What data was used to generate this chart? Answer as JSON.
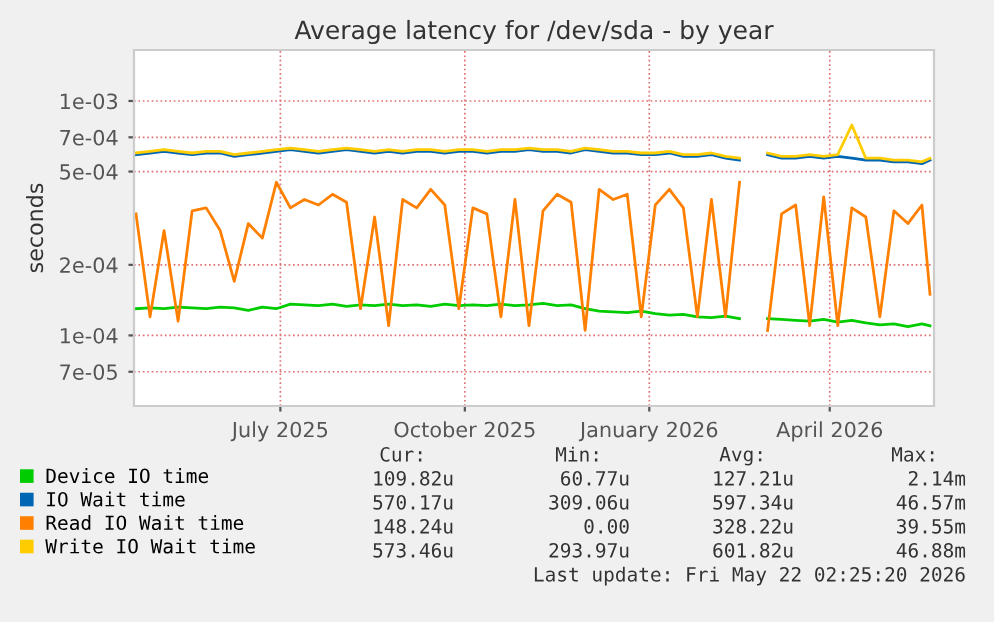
{
  "chart_data": {
    "type": "line",
    "title": "Average latency for /dev/sda - by year",
    "ylabel": "seconds",
    "x": [
      "2025-04-20",
      "2025-04-27",
      "2025-05-04",
      "2025-05-11",
      "2025-05-18",
      "2025-05-25",
      "2025-06-01",
      "2025-06-08",
      "2025-06-15",
      "2025-06-22",
      "2025-06-29",
      "2025-07-06",
      "2025-07-13",
      "2025-07-20",
      "2025-07-27",
      "2025-08-03",
      "2025-08-10",
      "2025-08-17",
      "2025-08-24",
      "2025-08-31",
      "2025-09-07",
      "2025-09-14",
      "2025-09-21",
      "2025-09-28",
      "2025-10-05",
      "2025-10-12",
      "2025-10-19",
      "2025-10-26",
      "2025-11-02",
      "2025-11-09",
      "2025-11-16",
      "2025-11-23",
      "2025-11-30",
      "2025-12-07",
      "2025-12-14",
      "2025-12-21",
      "2025-12-28",
      "2026-01-04",
      "2026-01-11",
      "2026-01-18",
      "2026-01-25",
      "2026-02-01",
      "2026-02-08",
      "2026-02-15",
      "2026-02-22",
      "2026-03-01",
      "2026-03-08",
      "2026-03-15",
      "2026-03-22",
      "2026-03-29",
      "2026-04-05",
      "2026-04-12",
      "2026-04-19",
      "2026-04-26",
      "2026-05-03",
      "2026-05-10",
      "2026-05-17",
      "2026-05-21"
    ],
    "series": [
      {
        "name": "Device IO time",
        "color": "#00cc00",
        "values": [
          0.00013,
          0.000131,
          0.00013,
          0.000132,
          0.000131,
          0.00013,
          0.000132,
          0.000131,
          0.000128,
          0.000132,
          0.00013,
          0.000136,
          0.000135,
          0.000134,
          0.000136,
          0.000133,
          0.000135,
          0.000134,
          0.000136,
          0.000134,
          0.000135,
          0.000133,
          0.000136,
          0.000134,
          0.000135,
          0.000134,
          0.000136,
          0.000134,
          0.000135,
          0.000137,
          0.000134,
          0.000135,
          0.00013,
          0.000127,
          0.000126,
          0.000125,
          0.000127,
          0.000124,
          0.000122,
          0.000123,
          0.00012,
          0.000119,
          0.000121,
          0.000118,
          null,
          0.000118,
          0.000117,
          0.000116,
          0.000115,
          0.000117,
          0.000114,
          0.000116,
          0.000113,
          0.000111,
          0.000112,
          0.000109,
          0.000112,
          0.00011
        ]
      },
      {
        "name": "IO Wait time",
        "color": "#0066b3",
        "values": [
          0.00059,
          0.0006,
          0.00061,
          0.0006,
          0.00059,
          0.0006,
          0.0006,
          0.00058,
          0.00059,
          0.0006,
          0.00061,
          0.00062,
          0.00061,
          0.0006,
          0.00061,
          0.00062,
          0.00061,
          0.0006,
          0.00061,
          0.0006,
          0.00061,
          0.00061,
          0.0006,
          0.00061,
          0.00061,
          0.0006,
          0.00061,
          0.00061,
          0.00062,
          0.00061,
          0.00061,
          0.0006,
          0.00062,
          0.00061,
          0.0006,
          0.0006,
          0.00059,
          0.00059,
          0.0006,
          0.00058,
          0.00058,
          0.00059,
          0.00057,
          0.00056,
          null,
          0.00059,
          0.00057,
          0.00057,
          0.00058,
          0.00057,
          0.00058,
          0.00057,
          0.00056,
          0.00056,
          0.00055,
          0.00055,
          0.00054,
          0.00056
        ]
      },
      {
        "name": "Read IO Wait time",
        "color": "#ff8000",
        "values": [
          0.00033,
          0.00012,
          0.00028,
          0.000115,
          0.00034,
          0.00035,
          0.00028,
          0.00017,
          0.0003,
          0.00026,
          0.00045,
          0.00035,
          0.00038,
          0.00036,
          0.0004,
          0.00037,
          0.00013,
          0.00032,
          0.00011,
          0.00038,
          0.00035,
          0.00042,
          0.00036,
          0.00013,
          0.00035,
          0.00033,
          0.00012,
          0.00038,
          0.00011,
          0.00034,
          0.0004,
          0.00037,
          0.000105,
          0.00042,
          0.00038,
          0.0004,
          0.00012,
          0.00036,
          0.00042,
          0.00035,
          0.00012,
          0.00038,
          0.00012,
          0.00045,
          null,
          0.000105,
          0.00033,
          0.00036,
          0.00011,
          0.00039,
          0.00011,
          0.00035,
          0.00032,
          0.00012,
          0.00034,
          0.0003,
          0.00036,
          0.00015
        ]
      },
      {
        "name": "Write IO Wait time",
        "color": "#ffcc00",
        "values": [
          0.0006,
          0.00061,
          0.00062,
          0.00061,
          0.0006,
          0.00061,
          0.00061,
          0.00059,
          0.0006,
          0.00061,
          0.00062,
          0.00063,
          0.00062,
          0.00061,
          0.00062,
          0.00063,
          0.00062,
          0.00061,
          0.00062,
          0.00061,
          0.00062,
          0.00062,
          0.00061,
          0.00062,
          0.00062,
          0.00061,
          0.00062,
          0.00062,
          0.00063,
          0.00062,
          0.00062,
          0.00061,
          0.00063,
          0.00062,
          0.00061,
          0.00061,
          0.0006,
          0.0006,
          0.00061,
          0.00059,
          0.00059,
          0.0006,
          0.00058,
          0.00057,
          null,
          0.0006,
          0.00058,
          0.00058,
          0.00059,
          0.00058,
          0.00059,
          0.00079,
          0.00057,
          0.00057,
          0.00056,
          0.00056,
          0.00055,
          0.00057
        ]
      }
    ],
    "log": "y",
    "xlim": [
      "2025-04-19",
      "2026-05-23"
    ],
    "ylim": [
      5e-05,
      0.00165
    ],
    "xticks": [
      {
        "value": "2025-07-01",
        "label": "July 2025"
      },
      {
        "value": "2025-10-01",
        "label": "October 2025"
      },
      {
        "value": "2026-01-01",
        "label": "January 2026"
      },
      {
        "value": "2026-04-01",
        "label": "April 2026"
      }
    ],
    "yticks": [
      {
        "value": 7e-05,
        "label": "7e-05"
      },
      {
        "value": 0.0001,
        "label": "1e-04"
      },
      {
        "value": 0.0002,
        "label": "2e-04"
      },
      {
        "value": 0.0005,
        "label": "5e-04"
      },
      {
        "value": 0.0007,
        "label": "7e-04"
      },
      {
        "value": 0.001,
        "label": "1e-03"
      }
    ],
    "grid": true,
    "legend": "bottom",
    "annotations": [
      "Cur:",
      "Min:",
      "Avg:",
      "Max:",
      "109.82u",
      "60.77u",
      "127.21u",
      "2.14m",
      "570.17u",
      "309.06u",
      "597.34u",
      "46.57m",
      "148.24u",
      "0.00",
      "328.22u",
      "39.55m",
      "573.46u",
      "293.97u",
      "601.82u",
      "46.88m",
      "Last update: Fri May 22 02:25:20 2026"
    ]
  }
}
